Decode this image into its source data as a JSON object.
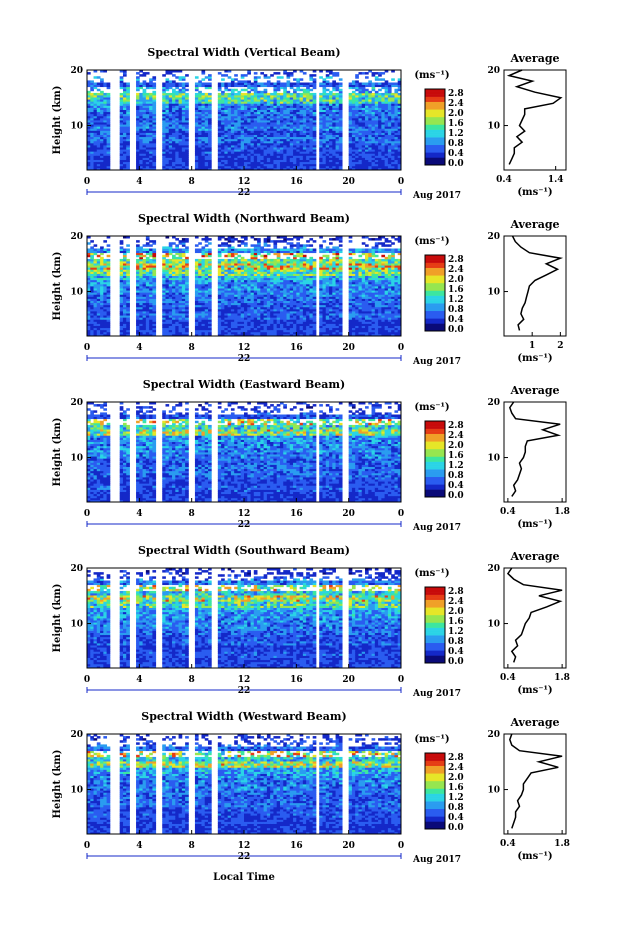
{
  "figure": {
    "xlabel": "Local Time",
    "date_label": "Aug 2017",
    "day_label": "22",
    "colorbar_unit": "(ms⁻¹)",
    "average_title": "Average",
    "average_unit": "(ms⁻¹)",
    "ylabel": "Height (km)",
    "colormap": [
      "#0a0a78",
      "#1428c8",
      "#2a5cf0",
      "#2a9cf0",
      "#2ad4e6",
      "#3ce6a0",
      "#96e650",
      "#e6e628",
      "#f0a028",
      "#e63c14",
      "#c80a0a"
    ]
  },
  "chart_data": [
    {
      "type": "heatmap",
      "title": "Spectral Width (Vertical Beam)",
      "x_ticks": [
        "0",
        "4",
        "8",
        "12",
        "16",
        "20",
        "0"
      ],
      "y_ticks": [
        "20",
        "10"
      ],
      "xlim": [
        0,
        24
      ],
      "ylim": [
        2,
        20
      ],
      "colorbar_ticks": [
        "2.8",
        "2.4",
        "2.0",
        "1.6",
        "1.2",
        "0.8",
        "0.4",
        "0.0"
      ],
      "colorbar_range": [
        0,
        3.0
      ],
      "data_gaps_hours": [
        [
          1.8,
          2.4
        ],
        [
          3.3,
          3.8
        ],
        [
          5.3,
          5.8
        ],
        [
          7.8,
          8.3
        ],
        [
          9.5,
          9.9
        ],
        [
          17.5,
          17.8
        ],
        [
          19.6,
          19.9
        ]
      ],
      "average_profile": {
        "xlim": [
          0.4,
          1.6
        ],
        "x_ticks": [
          "0.4",
          "1.4"
        ],
        "y_ticks": [
          "20",
          "10"
        ],
        "height_km": [
          3,
          4,
          5,
          6,
          7,
          8,
          9,
          10,
          11,
          12,
          13,
          14,
          15,
          16,
          17,
          18,
          19,
          20
        ],
        "width_ms": [
          0.5,
          0.55,
          0.6,
          0.6,
          0.75,
          0.65,
          0.8,
          0.7,
          0.75,
          0.8,
          0.8,
          1.35,
          1.5,
          1.0,
          0.65,
          0.95,
          0.5,
          0.75
        ]
      }
    },
    {
      "type": "heatmap",
      "title": "Spectral Width (Northward Beam)",
      "x_ticks": [
        "0",
        "4",
        "8",
        "12",
        "16",
        "20",
        "0"
      ],
      "y_ticks": [
        "20",
        "10"
      ],
      "xlim": [
        0,
        24
      ],
      "ylim": [
        2,
        20
      ],
      "colorbar_ticks": [
        "2.8",
        "2.4",
        "2.0",
        "1.6",
        "1.2",
        "0.8",
        "0.4",
        "0.0"
      ],
      "colorbar_range": [
        0,
        3.0
      ],
      "data_gaps_hours": [
        [
          1.8,
          2.4
        ],
        [
          3.3,
          3.8
        ],
        [
          5.3,
          5.8
        ],
        [
          7.8,
          8.3
        ],
        [
          9.5,
          9.9
        ],
        [
          17.5,
          17.8
        ],
        [
          19.6,
          19.9
        ]
      ],
      "average_profile": {
        "xlim": [
          0,
          2.2
        ],
        "x_ticks": [
          "1",
          "2"
        ],
        "y_ticks": [
          "20",
          "10"
        ],
        "height_km": [
          3,
          4,
          5,
          6,
          7,
          8,
          9,
          10,
          11,
          12,
          13,
          14,
          15,
          16,
          17,
          18,
          19,
          20
        ],
        "width_ms": [
          0.55,
          0.5,
          0.7,
          0.6,
          0.65,
          0.75,
          0.8,
          0.85,
          0.9,
          1.1,
          1.5,
          1.9,
          1.5,
          2.0,
          0.9,
          0.6,
          0.4,
          0.3
        ]
      }
    },
    {
      "type": "heatmap",
      "title": "Spectral Width (Eastward Beam)",
      "x_ticks": [
        "0",
        "4",
        "8",
        "12",
        "16",
        "20",
        "0"
      ],
      "y_ticks": [
        "20",
        "10"
      ],
      "xlim": [
        0,
        24
      ],
      "ylim": [
        2,
        20
      ],
      "colorbar_ticks": [
        "2.8",
        "2.4",
        "2.0",
        "1.6",
        "1.2",
        "0.8",
        "0.4",
        "0.0"
      ],
      "colorbar_range": [
        0,
        3.0
      ],
      "data_gaps_hours": [
        [
          1.8,
          2.4
        ],
        [
          3.3,
          3.8
        ],
        [
          5.3,
          5.8
        ],
        [
          7.8,
          8.3
        ],
        [
          9.5,
          9.9
        ],
        [
          17.5,
          17.8
        ],
        [
          19.6,
          19.9
        ]
      ],
      "average_profile": {
        "xlim": [
          0.3,
          1.9
        ],
        "x_ticks": [
          "0.4",
          "1.8"
        ],
        "y_ticks": [
          "20",
          "10"
        ],
        "height_km": [
          3,
          4,
          5,
          6,
          7,
          8,
          9,
          10,
          11,
          12,
          13,
          14,
          15,
          16,
          17,
          18,
          19,
          20
        ],
        "width_ms": [
          0.5,
          0.6,
          0.55,
          0.65,
          0.7,
          0.75,
          0.7,
          0.8,
          0.85,
          0.85,
          0.9,
          1.7,
          1.3,
          1.75,
          0.6,
          0.5,
          0.45,
          0.55
        ]
      }
    },
    {
      "type": "heatmap",
      "title": "Spectral Width (Southward Beam)",
      "x_ticks": [
        "0",
        "4",
        "8",
        "12",
        "16",
        "20",
        "0"
      ],
      "y_ticks": [
        "20",
        "10"
      ],
      "xlim": [
        0,
        24
      ],
      "ylim": [
        2,
        20
      ],
      "colorbar_ticks": [
        "2.8",
        "2.4",
        "2.0",
        "1.6",
        "1.2",
        "0.8",
        "0.4",
        "0.0"
      ],
      "colorbar_range": [
        0,
        3.0
      ],
      "data_gaps_hours": [
        [
          1.8,
          2.4
        ],
        [
          3.3,
          3.8
        ],
        [
          5.3,
          5.8
        ],
        [
          7.8,
          8.3
        ],
        [
          9.5,
          9.9
        ],
        [
          17.5,
          17.8
        ],
        [
          19.6,
          19.9
        ]
      ],
      "average_profile": {
        "xlim": [
          0.3,
          1.9
        ],
        "x_ticks": [
          "0.4",
          "1.8"
        ],
        "y_ticks": [
          "20",
          "10"
        ],
        "height_km": [
          3,
          4,
          5,
          6,
          7,
          8,
          9,
          10,
          11,
          12,
          13,
          14,
          15,
          16,
          17,
          18,
          19,
          20
        ],
        "width_ms": [
          0.55,
          0.6,
          0.5,
          0.65,
          0.6,
          0.75,
          0.8,
          0.85,
          0.95,
          1.0,
          1.4,
          1.75,
          1.2,
          1.8,
          0.8,
          0.55,
          0.4,
          0.5
        ]
      }
    },
    {
      "type": "heatmap",
      "title": "Spectral Width (Westward Beam)",
      "x_ticks": [
        "0",
        "4",
        "8",
        "12",
        "16",
        "20",
        "0"
      ],
      "y_ticks": [
        "20",
        "10"
      ],
      "xlim": [
        0,
        24
      ],
      "ylim": [
        2,
        20
      ],
      "colorbar_ticks": [
        "2.8",
        "2.4",
        "2.0",
        "1.6",
        "1.2",
        "0.8",
        "0.4",
        "0.0"
      ],
      "colorbar_range": [
        0,
        3.0
      ],
      "data_gaps_hours": [
        [
          1.8,
          2.4
        ],
        [
          3.3,
          3.8
        ],
        [
          5.3,
          5.8
        ],
        [
          7.8,
          8.3
        ],
        [
          9.5,
          9.9
        ],
        [
          17.5,
          17.8
        ],
        [
          19.6,
          19.9
        ]
      ],
      "average_profile": {
        "xlim": [
          0.3,
          1.9
        ],
        "x_ticks": [
          "0.4",
          "1.8"
        ],
        "y_ticks": [
          "20",
          "10"
        ],
        "height_km": [
          3,
          4,
          5,
          6,
          7,
          8,
          9,
          10,
          11,
          12,
          13,
          14,
          15,
          16,
          17,
          18,
          19,
          20
        ],
        "width_ms": [
          0.5,
          0.55,
          0.6,
          0.6,
          0.7,
          0.65,
          0.75,
          0.8,
          0.8,
          0.9,
          1.0,
          1.7,
          1.2,
          1.8,
          0.7,
          0.5,
          0.45,
          0.5
        ]
      }
    }
  ]
}
